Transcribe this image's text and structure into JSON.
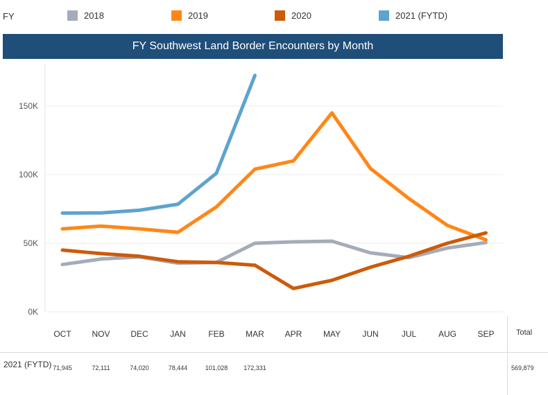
{
  "legend": {
    "title": "FY",
    "items": [
      {
        "label": "2018",
        "color": "#a5acb9"
      },
      {
        "label": "2019",
        "color": "#ff8717"
      },
      {
        "label": "2020",
        "color": "#cc5b0a"
      },
      {
        "label": "2021 (FYTD)",
        "color": "#5ea3cf"
      }
    ]
  },
  "chart_data": {
    "type": "line",
    "title": "FY Southwest Land Border Encounters by Month",
    "categories": [
      "OCT",
      "NOV",
      "DEC",
      "JAN",
      "FEB",
      "MAR",
      "APR",
      "MAY",
      "JUN",
      "JUL",
      "AUG",
      "SEP"
    ],
    "ylim": [
      0,
      180000
    ],
    "yticks": [
      0,
      50000,
      100000,
      150000
    ],
    "ytick_labels": [
      "0K",
      "50K",
      "100K",
      "150K"
    ],
    "grid": true,
    "legend_position": "top",
    "series": [
      {
        "name": "2018",
        "color": "#a5acb9",
        "values": [
          34500,
          38500,
          40000,
          35500,
          36000,
          50000,
          51000,
          51500,
          43000,
          39500,
          46500,
          50500
        ]
      },
      {
        "name": "2019",
        "color": "#ff8717",
        "values": [
          60500,
          62500,
          60500,
          58000,
          76500,
          104000,
          110000,
          145000,
          104500,
          82500,
          63000,
          52500
        ]
      },
      {
        "name": "2020",
        "color": "#cc5b0a",
        "values": [
          45000,
          42500,
          40500,
          36500,
          36000,
          34000,
          17000,
          23000,
          32500,
          40500,
          50000,
          57500
        ]
      },
      {
        "name": "2021 (FYTD)",
        "color": "#5ea3cf",
        "values": [
          71945,
          72111,
          74020,
          78444,
          101028,
          172331,
          null,
          null,
          null,
          null,
          null,
          null
        ]
      }
    ]
  },
  "table": {
    "row_label": "2021 (FYTD)",
    "total_header": "Total",
    "cells": [
      "71,945",
      "72,111",
      "74,020",
      "78,444",
      "101,028",
      "172,331",
      "",
      "",
      "",
      "",
      "",
      ""
    ],
    "total": "569,879"
  }
}
